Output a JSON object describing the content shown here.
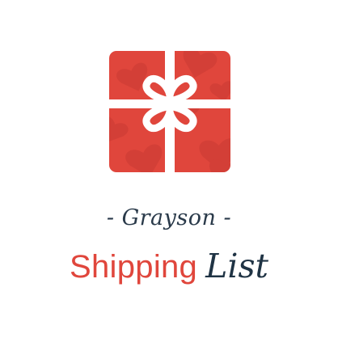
{
  "brand": {
    "subtitle_dash_left": "-",
    "subtitle_name": "Grayson",
    "subtitle_dash_right": "-",
    "title_primary": "Shipping",
    "title_secondary": "List"
  },
  "colors": {
    "box_red": "#e0463c",
    "heart_red": "#c93b33",
    "ribbon_white": "#ffffff",
    "title_red": "#e0463c",
    "navy": "#1f3344"
  },
  "icons": {
    "logo": "gift-box-icon"
  }
}
